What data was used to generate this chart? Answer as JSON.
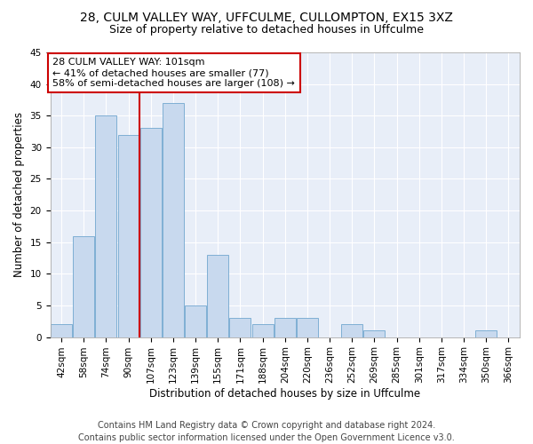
{
  "title1": "28, CULM VALLEY WAY, UFFCULME, CULLOMPTON, EX15 3XZ",
  "title2": "Size of property relative to detached houses in Uffculme",
  "xlabel": "Distribution of detached houses by size in Uffculme",
  "ylabel": "Number of detached properties",
  "categories": [
    "42sqm",
    "58sqm",
    "74sqm",
    "90sqm",
    "107sqm",
    "123sqm",
    "139sqm",
    "155sqm",
    "171sqm",
    "188sqm",
    "204sqm",
    "220sqm",
    "236sqm",
    "252sqm",
    "269sqm",
    "285sqm",
    "301sqm",
    "317sqm",
    "334sqm",
    "350sqm",
    "366sqm"
  ],
  "values": [
    2,
    16,
    35,
    32,
    33,
    37,
    5,
    13,
    3,
    2,
    3,
    3,
    0,
    2,
    1,
    0,
    0,
    0,
    0,
    1,
    0
  ],
  "bar_color": "#c8d9ee",
  "bar_edge_color": "#7fafd4",
  "marker_label": "28 CULM VALLEY WAY: 101sqm",
  "annotation_line1": "← 41% of detached houses are smaller (77)",
  "annotation_line2": "58% of semi-detached houses are larger (108) →",
  "vline_color": "#cc0000",
  "vline_x": 4.0,
  "annotation_box_facecolor": "#ffffff",
  "annotation_box_edge": "#cc0000",
  "ylim": [
    0,
    45
  ],
  "yticks": [
    0,
    5,
    10,
    15,
    20,
    25,
    30,
    35,
    40,
    45
  ],
  "footer1": "Contains HM Land Registry data © Crown copyright and database right 2024.",
  "footer2": "Contains public sector information licensed under the Open Government Licence v3.0.",
  "fig_facecolor": "#ffffff",
  "ax_facecolor": "#e8eef8",
  "grid_color": "#ffffff",
  "title1_fontsize": 10,
  "title2_fontsize": 9,
  "xlabel_fontsize": 8.5,
  "ylabel_fontsize": 8.5,
  "tick_fontsize": 7.5,
  "footer_fontsize": 7,
  "annotation_fontsize": 8
}
